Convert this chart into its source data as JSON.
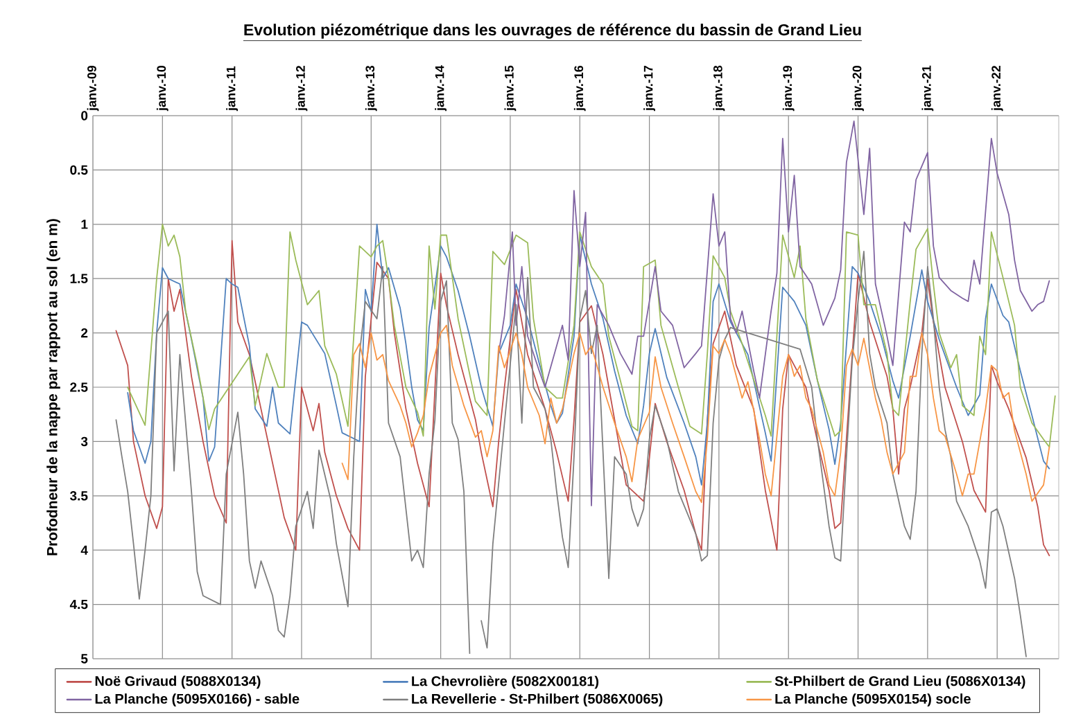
{
  "chart_data": {
    "type": "line",
    "title": "Evolution piézométrique dans les ouvrages de référence du bassin de Grand Lieu",
    "ylabel": "Profodneur de la nappe par rapport au sol (en m)",
    "xlim": [
      "2009-01",
      "2022-11-20"
    ],
    "xticks": [
      {
        "value": "2009-01",
        "label": "janv.-09"
      },
      {
        "value": "2010-01",
        "label": "janv.-10"
      },
      {
        "value": "2011-01",
        "label": "janv.-11"
      },
      {
        "value": "2012-01",
        "label": "janv.-12"
      },
      {
        "value": "2013-01",
        "label": "janv.-13"
      },
      {
        "value": "2014-01",
        "label": "janv.-14"
      },
      {
        "value": "2015-01",
        "label": "janv.-15"
      },
      {
        "value": "2016-01",
        "label": "janv.-16"
      },
      {
        "value": "2017-01",
        "label": "janv.-17"
      },
      {
        "value": "2018-01",
        "label": "janv.-18"
      },
      {
        "value": "2019-01",
        "label": "janv.-19"
      },
      {
        "value": "2020-01",
        "label": "janv.-20"
      },
      {
        "value": "2021-01",
        "label": "janv.-21"
      },
      {
        "value": "2022-01",
        "label": "janv.-22"
      }
    ],
    "ylim": [
      5,
      0
    ],
    "yticks": [
      0,
      0.5,
      1,
      1.5,
      2,
      2.5,
      3,
      3.5,
      4,
      4.5,
      5
    ],
    "grid": true,
    "legend": "bottom",
    "series": [
      {
        "name": "Noë Grivaud (5088X0134)",
        "color": "#c0504d",
        "x": [
          "2009-05",
          "2009-07",
          "2009-08",
          "2009-10",
          "2009-12",
          "2010-01",
          "2010-02",
          "2010-03",
          "2010-04",
          "2010-06",
          "2010-08",
          "2010-10",
          "2010-12",
          "2011-01",
          "2011-02",
          "2011-04",
          "2011-06",
          "2011-08",
          "2011-10",
          "2011-12",
          "2012-01",
          "2012-03",
          "2012-04",
          "2012-05",
          "2012-07",
          "2012-09",
          "2012-11",
          "2012-12",
          "2013-02",
          "2013-04",
          "2013-05",
          "2013-07",
          "2013-09",
          "2013-11",
          "2014-01",
          "2014-02",
          "2014-04",
          "2014-07",
          "2014-08",
          "2014-10",
          "2014-11",
          "2014-12",
          "2015-02",
          "2015-04",
          "2015-07",
          "2015-09",
          "2015-11",
          "2015-12",
          "2016-01",
          "2016-03",
          "2016-05",
          "2016-07",
          "2016-09",
          "2016-12",
          "2017-01",
          "2017-02",
          "2017-04",
          "2017-07",
          "2017-09",
          "2017-10",
          "2017-11",
          "2017-12",
          "2018-02",
          "2018-04",
          "2018-07",
          "2018-09",
          "2018-11",
          "2018-12",
          "2019-01",
          "2019-02",
          "2019-04",
          "2019-06",
          "2019-08",
          "2019-09",
          "2019-10",
          "2019-12",
          "2020-01",
          "2020-03",
          "2020-06",
          "2020-07",
          "2020-08",
          "2020-09",
          "2020-10",
          "2020-12",
          "2021-01",
          "2021-02",
          "2021-04",
          "2021-07",
          "2021-09",
          "2021-11",
          "2021-12",
          "2022-01",
          "2022-03",
          "2022-06",
          "2022-08",
          "2022-09",
          "2022-10"
        ],
        "values": [
          1.98,
          2.3,
          3.0,
          3.5,
          3.8,
          3.6,
          1.5,
          1.8,
          1.6,
          2.4,
          3.0,
          3.5,
          3.75,
          1.15,
          1.9,
          2.2,
          2.7,
          3.2,
          3.7,
          4.0,
          2.5,
          2.9,
          2.65,
          3.1,
          3.5,
          3.8,
          4.0,
          2.4,
          1.35,
          1.5,
          2.0,
          2.7,
          3.2,
          3.6,
          1.45,
          1.75,
          2.2,
          2.8,
          3.1,
          3.6,
          3.0,
          2.5,
          1.6,
          2.2,
          2.7,
          3.1,
          3.55,
          2.8,
          1.9,
          1.75,
          2.2,
          2.8,
          3.4,
          3.55,
          3.15,
          2.65,
          3.0,
          3.45,
          3.85,
          4.0,
          2.8,
          2.1,
          1.8,
          2.3,
          2.7,
          3.45,
          4.0,
          2.7,
          2.2,
          2.3,
          2.5,
          3.0,
          3.45,
          3.8,
          3.75,
          2.2,
          1.45,
          1.9,
          2.4,
          2.7,
          3.3,
          2.7,
          2.5,
          2.0,
          1.5,
          1.9,
          2.5,
          3.0,
          3.45,
          3.65,
          2.3,
          2.45,
          2.7,
          3.15,
          3.6,
          3.95,
          4.05
        ]
      },
      {
        "name": "La Chevrolière (5082X00181)",
        "color": "#4f81bd",
        "x": [
          "2009-07",
          "2009-08",
          "2009-10",
          "2009-11",
          "2009-12",
          "2010-01",
          "2010-02",
          "2010-04",
          "2010-06",
          "2010-08",
          "2010-09",
          "2010-10",
          "2010-12",
          "2011-01",
          "2011-02",
          "2011-04",
          "2011-05",
          "2011-07",
          "2011-08",
          "2011-09",
          "2011-11",
          "2012-01",
          "2012-02",
          "2012-05",
          "2012-07",
          "2012-08",
          "2012-11",
          "2012-12",
          "2013-01",
          "2013-02",
          "2013-03",
          "2013-04",
          "2013-06",
          "2013-07",
          "2013-08",
          "2013-09",
          "2013-10",
          "2013-11",
          "2014-01",
          "2014-02",
          "2014-04",
          "2014-06",
          "2014-08",
          "2014-10",
          "2014-11",
          "2015-01",
          "2015-02",
          "2015-04",
          "2015-06",
          "2015-08",
          "2015-09",
          "2015-10",
          "2015-12",
          "2016-01",
          "2016-03",
          "2016-05",
          "2016-07",
          "2016-09",
          "2016-11",
          "2016-12",
          "2017-01",
          "2017-02",
          "2017-04",
          "2017-07",
          "2017-09",
          "2017-10",
          "2017-11",
          "2017-12",
          "2018-01",
          "2018-03",
          "2018-06",
          "2018-09",
          "2018-10",
          "2018-12",
          "2019-02",
          "2019-04",
          "2019-06",
          "2019-08",
          "2019-09",
          "2019-10",
          "2019-12",
          "2020-01",
          "2020-03",
          "2020-05",
          "2020-07",
          "2020-08",
          "2020-10",
          "2020-12",
          "2021-01",
          "2021-03",
          "2021-06",
          "2021-08",
          "2021-10",
          "2021-11",
          "2021-12",
          "2022-02",
          "2022-03",
          "2022-05",
          "2022-07",
          "2022-09",
          "2022-10"
        ],
        "values": [
          2.55,
          2.9,
          3.2,
          3.0,
          2.0,
          1.4,
          1.5,
          1.55,
          2.06,
          2.6,
          3.18,
          3.05,
          1.5,
          1.55,
          1.58,
          2.12,
          2.7,
          2.86,
          2.5,
          2.83,
          2.93,
          1.9,
          1.93,
          2.19,
          2.67,
          2.92,
          3.0,
          1.6,
          1.8,
          1.0,
          1.5,
          1.4,
          1.77,
          2.1,
          2.5,
          2.8,
          2.9,
          1.95,
          1.2,
          1.3,
          1.61,
          2.03,
          2.5,
          2.86,
          2.19,
          1.93,
          1.55,
          1.87,
          2.28,
          2.67,
          2.83,
          2.74,
          2.03,
          1.1,
          1.55,
          1.87,
          2.35,
          2.76,
          3.02,
          2.67,
          2.19,
          1.96,
          2.41,
          2.83,
          3.14,
          3.4,
          2.83,
          1.71,
          1.55,
          1.9,
          2.2,
          2.92,
          3.18,
          1.58,
          1.71,
          1.93,
          2.44,
          2.89,
          3.21,
          2.83,
          1.39,
          1.45,
          1.71,
          2.03,
          2.44,
          2.6,
          2.03,
          1.42,
          1.71,
          2.06,
          2.5,
          2.76,
          2.57,
          1.87,
          1.55,
          1.84,
          1.9,
          2.35,
          2.76,
          3.18,
          3.25
        ]
      },
      {
        "name": "St-Philbert de Grand Lieu (5086X0134)",
        "color": "#9bbb59",
        "x": [
          "2009-07",
          "2009-10",
          "2009-12",
          "2010-01",
          "2010-02",
          "2010-03",
          "2010-04",
          "2010-05",
          "2010-07",
          "2010-09",
          "2010-10",
          "2011-04",
          "2011-05",
          "2011-07",
          "2011-09",
          "2011-10",
          "2011-11",
          "2011-12",
          "2012-02",
          "2012-04",
          "2012-05",
          "2012-07",
          "2012-09",
          "2012-11",
          "2013-01",
          "2013-02",
          "2013-03",
          "2013-04",
          "2013-05",
          "2013-07",
          "2013-09",
          "2013-10",
          "2013-11",
          "2013-12",
          "2014-01",
          "2014-02",
          "2014-04",
          "2014-06",
          "2014-07",
          "2014-09",
          "2014-10",
          "2014-12",
          "2015-02",
          "2015-04",
          "2015-05",
          "2015-07",
          "2015-09",
          "2015-10",
          "2015-12",
          "2016-01",
          "2016-03",
          "2016-05",
          "2016-06",
          "2016-08",
          "2016-10",
          "2016-11",
          "2016-12",
          "2017-02",
          "2017-03",
          "2017-06",
          "2017-08",
          "2017-10",
          "2017-11",
          "2017-12",
          "2018-02",
          "2018-03",
          "2018-05",
          "2018-09",
          "2018-10",
          "2018-12",
          "2019-02",
          "2019-03",
          "2019-04",
          "2019-06",
          "2019-09",
          "2019-10",
          "2019-11",
          "2020-01",
          "2020-02",
          "2020-04",
          "2020-06",
          "2020-07",
          "2020-08",
          "2020-10",
          "2020-11",
          "2021-01",
          "2021-02",
          "2021-03",
          "2021-05",
          "2021-06",
          "2021-07",
          "2021-09",
          "2021-10",
          "2021-11",
          "2021-12",
          "2022-02",
          "2022-04",
          "2022-05",
          "2022-07",
          "2022-09",
          "2022-10",
          "2022-11"
        ],
        "values": [
          2.5,
          2.85,
          1.5,
          1.0,
          1.2,
          1.1,
          1.3,
          1.8,
          2.3,
          2.89,
          2.7,
          2.22,
          2.67,
          2.19,
          2.5,
          2.5,
          1.07,
          1.33,
          1.74,
          1.61,
          2.12,
          2.38,
          2.86,
          1.2,
          1.3,
          1.2,
          1.15,
          1.5,
          1.93,
          2.5,
          2.73,
          2.95,
          1.2,
          1.78,
          1.1,
          1.1,
          1.87,
          2.38,
          2.63,
          2.76,
          1.25,
          1.37,
          1.1,
          1.17,
          1.87,
          2.5,
          2.6,
          2.6,
          1.93,
          1.07,
          1.39,
          1.55,
          2.03,
          2.44,
          2.86,
          2.9,
          1.39,
          1.33,
          1.93,
          2.5,
          2.86,
          2.93,
          2.19,
          1.29,
          1.49,
          1.8,
          2.1,
          2.76,
          2.95,
          1.1,
          1.49,
          1.2,
          1.87,
          2.44,
          2.95,
          2.9,
          1.07,
          1.1,
          1.74,
          1.74,
          2.19,
          2.7,
          2.76,
          1.71,
          1.23,
          1.04,
          1.55,
          2.0,
          2.32,
          2.2,
          2.67,
          2.76,
          2.03,
          2.2,
          1.07,
          1.49,
          1.93,
          2.5,
          2.83,
          2.98,
          3.05,
          2.58
        ]
      },
      {
        "name": "La Planche (5095X0166) - sable",
        "color": "#8064a2",
        "x": [
          "2014-11",
          "2014-12",
          "2015-01-12",
          "2015-02",
          "2015-03",
          "2015-04",
          "2015-06",
          "2015-07",
          "2015-09",
          "2015-10",
          "2015-11",
          "2015-12",
          "2016-01",
          "2016-02",
          "2016-03",
          "2016-04",
          "2016-06",
          "2016-08",
          "2016-10",
          "2016-11",
          "2016-12",
          "2017-02",
          "2017-03",
          "2017-05",
          "2017-07",
          "2017-09",
          "2017-10",
          "2017-12",
          "2018-01",
          "2018-02",
          "2018-03",
          "2018-04",
          "2018-05",
          "2018-07",
          "2018-08",
          "2018-10",
          "2018-11",
          "2018-12",
          "2019-01",
          "2019-02",
          "2019-03",
          "2019-05",
          "2019-07",
          "2019-09",
          "2019-10",
          "2019-11",
          "2019-12-10",
          "2020-02",
          "2020-03",
          "2020-04",
          "2020-06",
          "2020-07",
          "2020-09",
          "2020-10",
          "2020-11",
          "2021-01",
          "2021-02",
          "2021-03",
          "2021-05",
          "2021-07",
          "2021-08",
          "2021-09",
          "2021-10",
          "2021-12",
          "2022-01",
          "2022-03",
          "2022-04",
          "2022-05",
          "2022-07",
          "2022-08",
          "2022-09",
          "2022-10"
        ],
        "values": [
          2.19,
          1.84,
          1.07,
          1.93,
          1.39,
          2.03,
          2.35,
          2.5,
          2.12,
          1.93,
          2.25,
          0.69,
          1.39,
          0.89,
          3.59,
          1.74,
          1.93,
          2.19,
          2.38,
          2.03,
          2.03,
          1.39,
          1.8,
          1.93,
          2.32,
          2.19,
          2.12,
          0.72,
          1.2,
          1.07,
          1.87,
          2.0,
          1.8,
          2.35,
          2.6,
          1.8,
          1.45,
          0.21,
          1.07,
          0.55,
          1.39,
          1.55,
          1.93,
          1.68,
          1.42,
          0.43,
          0.05,
          0.91,
          0.3,
          1.55,
          2.03,
          2.3,
          0.98,
          1.07,
          0.59,
          0.34,
          1.2,
          1.49,
          1.61,
          1.68,
          1.71,
          1.33,
          1.55,
          0.21,
          0.53,
          0.91,
          1.33,
          1.61,
          1.8,
          1.74,
          1.71,
          1.52
        ]
      },
      {
        "name": "La Revellerie - St-Philbert (5086X0065)",
        "color": "#7f7f7f",
        "x": [
          "2009-05",
          "2009-06",
          "2009-07",
          "2009-08",
          "2009-09",
          "2009-10",
          "2009-11",
          "2009-12",
          "2010-02",
          "2010-03",
          "2010-04",
          "2010-05",
          "2010-06",
          "2010-07",
          "2010-08",
          "2010-11",
          "2010-12",
          "2011-02",
          "2011-03",
          "2011-04",
          "2011-05",
          "2011-06",
          "2011-08",
          "2011-09",
          "2011-10",
          "2011-11",
          "2011-12",
          "2012-02",
          "2012-03",
          "2012-04",
          "2012-06",
          "2012-07",
          "2012-09",
          "2012-10",
          "2012-11",
          "2012-12",
          "2013-02",
          "2013-03",
          "2013-04",
          "2013-06",
          "2013-08",
          "2013-09",
          "2013-10",
          "2013-11",
          "2013-12",
          "2014-01",
          "2014-02",
          "2014-03",
          "2014-04",
          "2014-05",
          "2014-06",
          "2014-07",
          "2014-08",
          "2014-09",
          "2014-10",
          "2014-12",
          "2015-02",
          "2015-03",
          "2015-04",
          "2015-05",
          "2015-07",
          "2015-08",
          "2015-09",
          "2015-10",
          "2015-11",
          "2015-12",
          "2016-01",
          "2016-02",
          "2016-03",
          "2016-04",
          "2016-06",
          "2016-07",
          "2016-09",
          "2016-10",
          "2016-11",
          "2016-12",
          "2017-01",
          "2017-02",
          "2017-04",
          "2017-06",
          "2017-09",
          "2017-10",
          "2017-11",
          "2017-12",
          "2018-01",
          "2018-02",
          "2018-03",
          "2019-03",
          "2019-05",
          "2019-06",
          "2019-08",
          "2019-09",
          "2019-10",
          "2019-11",
          "2019-12",
          "2020-01",
          "2020-02",
          "2020-03",
          "2020-04",
          "2020-06",
          "2020-07",
          "2020-09",
          "2020-10",
          "2020-11",
          "2020-12",
          "2021-01",
          "2021-02",
          "2021-03",
          "2021-04",
          "2021-05",
          "2021-06",
          "2021-08",
          "2021-10",
          "2021-11",
          "2021-12",
          "2022-01",
          "2022-02",
          "2022-04",
          "2022-05",
          "2022-06"
        ],
        "values": [
          2.8,
          3.14,
          3.46,
          3.94,
          4.45,
          4.0,
          3.5,
          2.0,
          1.8,
          3.27,
          2.2,
          2.83,
          3.46,
          4.2,
          4.42,
          4.5,
          3.3,
          2.73,
          3.3,
          4.1,
          4.35,
          4.1,
          4.42,
          4.74,
          4.8,
          4.42,
          3.78,
          3.46,
          3.8,
          3.08,
          3.53,
          3.94,
          4.52,
          3.14,
          2.19,
          1.71,
          1.87,
          1.39,
          2.83,
          3.14,
          4.1,
          4.0,
          4.16,
          3.3,
          2.8,
          1.71,
          1.52,
          2.83,
          2.98,
          3.46,
          4.95,
          null,
          4.65,
          4.9,
          3.94,
          2.83,
          1.74,
          2.83,
          1.49,
          2.5,
          2.7,
          2.98,
          3.46,
          3.88,
          4.16,
          3.14,
          1.87,
          1.61,
          2.19,
          1.93,
          4.26,
          3.14,
          3.3,
          3.62,
          3.78,
          3.62,
          2.98,
          2.67,
          2.98,
          3.46,
          3.85,
          4.1,
          4.05,
          2.83,
          2.25,
          2.06,
          1.95,
          2.15,
          2.5,
          2.98,
          3.78,
          4.07,
          4.1,
          3.14,
          2.25,
          1.71,
          1.25,
          2.19,
          2.5,
          2.83,
          3.3,
          3.78,
          3.9,
          3.46,
          2.19,
          1.39,
          1.87,
          2.5,
          2.89,
          3.14,
          3.55,
          3.78,
          4.1,
          4.35,
          3.65,
          3.62,
          3.78,
          4.26,
          4.6,
          4.98
        ]
      },
      {
        "name": "La Planche (5095X0154) socle",
        "color": "#f79646",
        "x": [
          "2012-08",
          "2012-09",
          "2012-10",
          "2012-11",
          "2012-12",
          "2013-01",
          "2013-02",
          "2013-03",
          "2013-04",
          "2013-06",
          "2013-07",
          "2013-08",
          "2013-09",
          "2013-10",
          "2013-11",
          "2014-01",
          "2014-02",
          "2014-03",
          "2014-05",
          "2014-07",
          "2014-08",
          "2014-09",
          "2014-10",
          "2014-11",
          "2014-12",
          "2015-02",
          "2015-03",
          "2015-04",
          "2015-06",
          "2015-07",
          "2015-08",
          "2015-09",
          "2015-10",
          "2015-12",
          "2016-01",
          "2016-02",
          "2016-03",
          "2016-05",
          "2016-07",
          "2016-09",
          "2016-10",
          "2016-11",
          "2017-01",
          "2017-02",
          "2017-03",
          "2017-05",
          "2017-07",
          "2017-09",
          "2017-10",
          "2017-11",
          "2017-12",
          "2018-01",
          "2018-02",
          "2018-03",
          "2018-05",
          "2018-06",
          "2018-08",
          "2018-09",
          "2018-10",
          "2018-12",
          "2019-01",
          "2019-02",
          "2019-03",
          "2019-04",
          "2019-05",
          "2019-07",
          "2019-08",
          "2019-09",
          "2019-10",
          "2019-11",
          "2019-12",
          "2020-01",
          "2020-02",
          "2020-04",
          "2020-05",
          "2020-06",
          "2020-07",
          "2020-09",
          "2020-10",
          "2020-11",
          "2020-12",
          "2021-01",
          "2021-02",
          "2021-03",
          "2021-04",
          "2021-06",
          "2021-07",
          "2021-08",
          "2021-09",
          "2021-11",
          "2021-12",
          "2022-01",
          "2022-02",
          "2022-03",
          "2022-04",
          "2022-06",
          "2022-07",
          "2022-09",
          "2022-10"
        ],
        "values": [
          3.2,
          3.35,
          2.2,
          2.1,
          2.32,
          2.0,
          2.25,
          2.2,
          2.44,
          2.67,
          2.83,
          3.05,
          2.92,
          2.76,
          2.4,
          2.0,
          1.93,
          2.3,
          2.67,
          2.96,
          2.9,
          3.14,
          2.9,
          2.12,
          2.32,
          2.0,
          2.2,
          2.5,
          2.76,
          3.02,
          2.6,
          2.83,
          2.7,
          2.19,
          2.0,
          2.2,
          2.12,
          2.5,
          2.83,
          3.14,
          3.37,
          2.98,
          2.73,
          2.22,
          2.5,
          2.83,
          3.14,
          3.46,
          3.56,
          2.98,
          2.12,
          2.19,
          2.06,
          2.2,
          2.6,
          2.45,
          2.98,
          3.3,
          3.5,
          2.4,
          2.2,
          2.4,
          2.3,
          2.6,
          2.7,
          3.1,
          3.4,
          3.5,
          3.1,
          2.3,
          2.15,
          2.3,
          2.05,
          2.6,
          2.8,
          3.1,
          3.3,
          3.1,
          2.4,
          2.4,
          2.0,
          2.2,
          2.6,
          2.9,
          2.95,
          3.3,
          3.5,
          3.3,
          3.3,
          2.7,
          2.3,
          2.35,
          2.6,
          2.55,
          2.9,
          3.3,
          3.55,
          3.4,
          3.05
        ]
      }
    ]
  }
}
